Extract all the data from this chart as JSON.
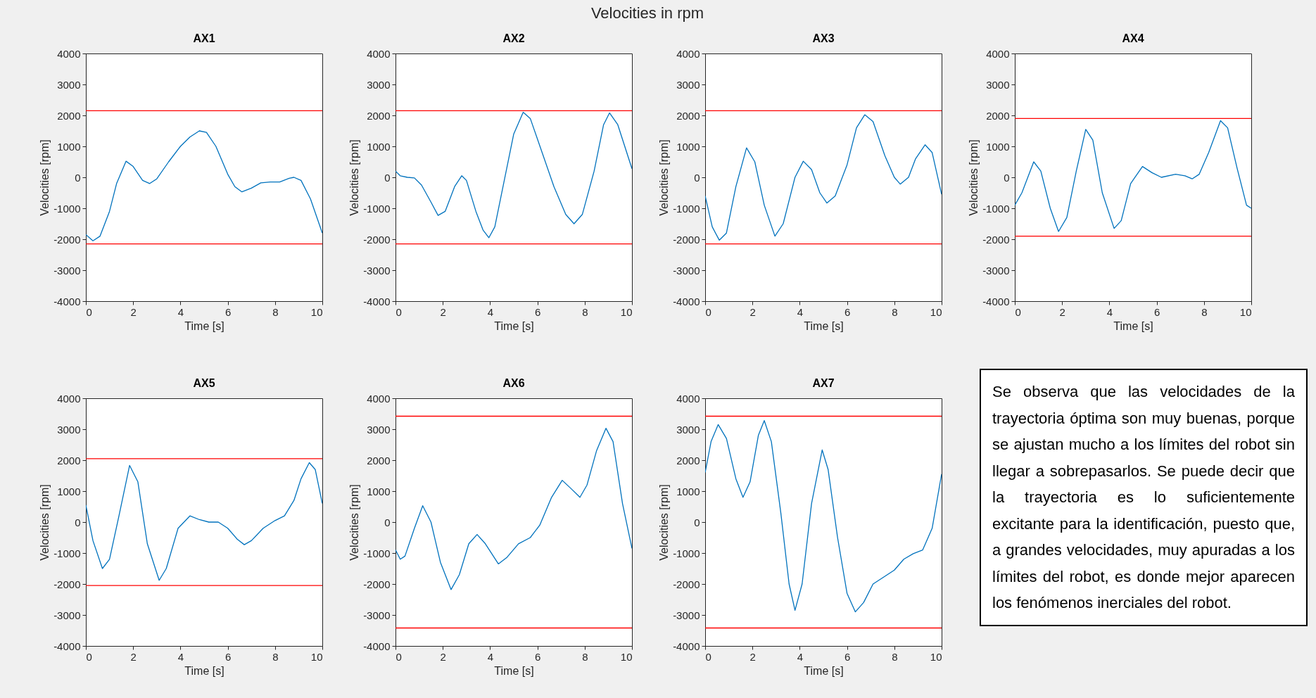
{
  "chart_data": [
    {
      "type": "other",
      "title": "Velocities in rpm"
    },
    {
      "type": "line",
      "title": "AX1",
      "xlabel": "Time [s]",
      "ylabel": "Velocities [rpm]",
      "xlim": [
        0,
        10
      ],
      "ylim": [
        -4000,
        4000
      ],
      "xticks": [
        0,
        2,
        4,
        6,
        8,
        10
      ],
      "yticks": [
        -4000,
        -3000,
        -2000,
        -1000,
        0,
        1000,
        2000,
        3000,
        4000
      ],
      "series": [
        {
          "color": "#0072bd",
          "x": [
            0,
            0.3,
            0.6,
            1,
            1.3,
            1.7,
            2,
            2.4,
            2.7,
            3,
            3.5,
            4,
            4.4,
            4.8,
            5.1,
            5.5,
            6,
            6.3,
            6.6,
            7,
            7.4,
            7.8,
            8.2,
            8.6,
            8.8,
            9.1,
            9.5,
            10
          ],
          "values": [
            -1850,
            -2050,
            -1900,
            -1100,
            -200,
            520,
            350,
            -100,
            -200,
            -50,
            500,
            1000,
            1300,
            1500,
            1450,
            1000,
            100,
            -300,
            -470,
            -350,
            -180,
            -150,
            -150,
            -30,
            0,
            -100,
            -700,
            -1800
          ]
        }
      ],
      "ref_lines": [
        {
          "axis": "y",
          "value": 2150,
          "color": "#ff0000"
        },
        {
          "axis": "y",
          "value": -2150,
          "color": "#ff0000"
        }
      ]
    },
    {
      "type": "line",
      "title": "AX2",
      "xlabel": "Time [s]",
      "ylabel": "Velocities [rpm]",
      "xlim": [
        0,
        10
      ],
      "ylim": [
        -4000,
        4000
      ],
      "xticks": [
        0,
        2,
        4,
        6,
        8,
        10
      ],
      "yticks": [
        -4000,
        -3000,
        -2000,
        -1000,
        0,
        1000,
        2000,
        3000,
        4000
      ],
      "series": [
        {
          "color": "#0072bd",
          "x": [
            0,
            0.2,
            0.5,
            0.8,
            1.1,
            1.5,
            1.8,
            2.1,
            2.5,
            2.8,
            3,
            3.4,
            3.7,
            3.95,
            4.2,
            4.6,
            5,
            5.4,
            5.7,
            6.2,
            6.7,
            7.2,
            7.55,
            7.9,
            8.4,
            8.8,
            9.05,
            9.4,
            10
          ],
          "values": [
            200,
            50,
            0,
            -20,
            -250,
            -800,
            -1230,
            -1100,
            -300,
            50,
            -100,
            -1100,
            -1700,
            -1950,
            -1600,
            -100,
            1400,
            2100,
            1900,
            800,
            -300,
            -1200,
            -1500,
            -1200,
            200,
            1700,
            2080,
            1700,
            280
          ]
        }
      ],
      "ref_lines": [
        {
          "axis": "y",
          "value": 2150,
          "color": "#ff0000"
        },
        {
          "axis": "y",
          "value": -2150,
          "color": "#ff0000"
        }
      ]
    },
    {
      "type": "line",
      "title": "AX3",
      "xlabel": "Time [s]",
      "ylabel": "Velocities [rpm]",
      "xlim": [
        0,
        10
      ],
      "ylim": [
        -4000,
        4000
      ],
      "xticks": [
        0,
        2,
        4,
        6,
        8,
        10
      ],
      "yticks": [
        -4000,
        -3000,
        -2000,
        -1000,
        0,
        1000,
        2000,
        3000,
        4000
      ],
      "series": [
        {
          "color": "#0072bd",
          "x": [
            0,
            0.3,
            0.6,
            0.9,
            1.3,
            1.75,
            2.1,
            2.5,
            2.95,
            3.3,
            3.8,
            4.15,
            4.5,
            4.85,
            5.15,
            5.5,
            6,
            6.4,
            6.75,
            7.1,
            7.6,
            8,
            8.25,
            8.6,
            8.9,
            9.3,
            9.6,
            10
          ],
          "values": [
            -600,
            -1600,
            -2030,
            -1800,
            -300,
            950,
            500,
            -900,
            -1900,
            -1500,
            0,
            520,
            250,
            -500,
            -830,
            -600,
            400,
            1600,
            2020,
            1800,
            700,
            0,
            -220,
            0,
            600,
            1050,
            800,
            -550
          ]
        }
      ],
      "ref_lines": [
        {
          "axis": "y",
          "value": 2150,
          "color": "#ff0000"
        },
        {
          "axis": "y",
          "value": -2150,
          "color": "#ff0000"
        }
      ]
    },
    {
      "type": "line",
      "title": "AX4",
      "xlabel": "Time [s]",
      "ylabel": "Velocities [rpm]",
      "xlim": [
        0,
        10
      ],
      "ylim": [
        -4000,
        4000
      ],
      "xticks": [
        0,
        2,
        4,
        6,
        8,
        10
      ],
      "yticks": [
        -4000,
        -3000,
        -2000,
        -1000,
        0,
        1000,
        2000,
        3000,
        4000
      ],
      "series": [
        {
          "color": "#0072bd",
          "x": [
            0,
            0.3,
            0.8,
            1.1,
            1.5,
            1.85,
            2.2,
            2.6,
            3,
            3.3,
            3.7,
            4.2,
            4.5,
            4.9,
            5.4,
            5.8,
            6.2,
            6.8,
            7.2,
            7.5,
            7.8,
            8.2,
            8.7,
            9,
            9.4,
            9.8,
            10
          ],
          "values": [
            -900,
            -500,
            500,
            200,
            -1000,
            -1750,
            -1300,
            200,
            1550,
            1200,
            -500,
            -1650,
            -1400,
            -200,
            350,
            150,
            0,
            100,
            50,
            -50,
            100,
            800,
            1830,
            1600,
            300,
            -900,
            -1000
          ]
        }
      ],
      "ref_lines": [
        {
          "axis": "y",
          "value": 1900,
          "color": "#ff0000"
        },
        {
          "axis": "y",
          "value": -1900,
          "color": "#ff0000"
        }
      ]
    },
    {
      "type": "line",
      "title": "AX5",
      "xlabel": "Time [s]",
      "ylabel": "Velocities [rpm]",
      "xlim": [
        0,
        10
      ],
      "ylim": [
        -4000,
        4000
      ],
      "xticks": [
        0,
        2,
        4,
        6,
        8,
        10
      ],
      "yticks": [
        -4000,
        -3000,
        -2000,
        -1000,
        0,
        1000,
        2000,
        3000,
        4000
      ],
      "series": [
        {
          "color": "#0072bd",
          "x": [
            0,
            0.3,
            0.7,
            1,
            1.4,
            1.85,
            2.2,
            2.6,
            3.1,
            3.4,
            3.9,
            4.4,
            4.8,
            5.2,
            5.6,
            6,
            6.4,
            6.7,
            7,
            7.5,
            8,
            8.4,
            8.8,
            9.1,
            9.45,
            9.7,
            10
          ],
          "values": [
            550,
            -600,
            -1500,
            -1200,
            200,
            1830,
            1300,
            -700,
            -1880,
            -1500,
            -200,
            200,
            80,
            0,
            0,
            -200,
            -550,
            -730,
            -600,
            -200,
            50,
            200,
            700,
            1400,
            1920,
            1700,
            600
          ]
        }
      ],
      "ref_lines": [
        {
          "axis": "y",
          "value": 2050,
          "color": "#ff0000"
        },
        {
          "axis": "y",
          "value": -2050,
          "color": "#ff0000"
        }
      ]
    },
    {
      "type": "line",
      "title": "AX6",
      "xlabel": "Time [s]",
      "ylabel": "Velocities [rpm]",
      "xlim": [
        0,
        10
      ],
      "ylim": [
        -4000,
        4000
      ],
      "xticks": [
        0,
        2,
        4,
        6,
        8,
        10
      ],
      "yticks": [
        -4000,
        -3000,
        -2000,
        -1000,
        0,
        1000,
        2000,
        3000,
        4000
      ],
      "series": [
        {
          "color": "#0072bd",
          "x": [
            0,
            0.2,
            0.4,
            0.8,
            1.15,
            1.5,
            1.9,
            2.35,
            2.7,
            3.1,
            3.45,
            3.8,
            4.35,
            4.7,
            5.2,
            5.7,
            6.1,
            6.6,
            7.05,
            7.4,
            7.8,
            8.1,
            8.5,
            8.9,
            9.2,
            9.6,
            10
          ],
          "values": [
            -900,
            -1200,
            -1100,
            -200,
            530,
            0,
            -1300,
            -2180,
            -1700,
            -700,
            -400,
            -700,
            -1350,
            -1150,
            -700,
            -500,
            -100,
            800,
            1350,
            1100,
            800,
            1200,
            2300,
            3030,
            2600,
            600,
            -850
          ]
        }
      ],
      "ref_lines": [
        {
          "axis": "y",
          "value": 3420,
          "color": "#ff0000"
        },
        {
          "axis": "y",
          "value": -3420,
          "color": "#ff0000"
        }
      ]
    },
    {
      "type": "line",
      "title": "AX7",
      "xlabel": "Time [s]",
      "ylabel": "Velocities [rpm]",
      "xlim": [
        0,
        10
      ],
      "ylim": [
        -4000,
        4000
      ],
      "xticks": [
        0,
        2,
        4,
        6,
        8,
        10
      ],
      "yticks": [
        -4000,
        -3000,
        -2000,
        -1000,
        0,
        1000,
        2000,
        3000,
        4000
      ],
      "series": [
        {
          "color": "#0072bd",
          "x": [
            0,
            0.25,
            0.55,
            0.9,
            1.3,
            1.6,
            1.9,
            2.25,
            2.5,
            2.8,
            3.2,
            3.55,
            3.8,
            4.1,
            4.5,
            4.95,
            5.2,
            5.6,
            6,
            6.35,
            6.7,
            7.1,
            7.5,
            8,
            8.4,
            8.8,
            9.2,
            9.6,
            10
          ],
          "values": [
            1600,
            2600,
            3150,
            2700,
            1400,
            800,
            1300,
            2800,
            3280,
            2600,
            300,
            -2000,
            -2850,
            -2000,
            600,
            2330,
            1700,
            -500,
            -2300,
            -2900,
            -2600,
            -2000,
            -1800,
            -1550,
            -1200,
            -1020,
            -900,
            -200,
            1550
          ]
        }
      ],
      "ref_lines": [
        {
          "axis": "y",
          "value": 3420,
          "color": "#ff0000"
        },
        {
          "axis": "y",
          "value": -3420,
          "color": "#ff0000"
        }
      ]
    },
    {
      "type": "other",
      "annotations": [
        "Se observa que las velocidades de la trayectoria óptima son muy buenas, porque se ajustan mucho a los límites del robot sin llegar a sobrepasarlos. Se puede decir que la trayectoria es lo suficientemente excitante para la identificación, puesto que, a grandes velocidades, muy apuradas a los límites del robot, es donde mejor aparecen los fenómenos inerciales del robot."
      ]
    }
  ]
}
